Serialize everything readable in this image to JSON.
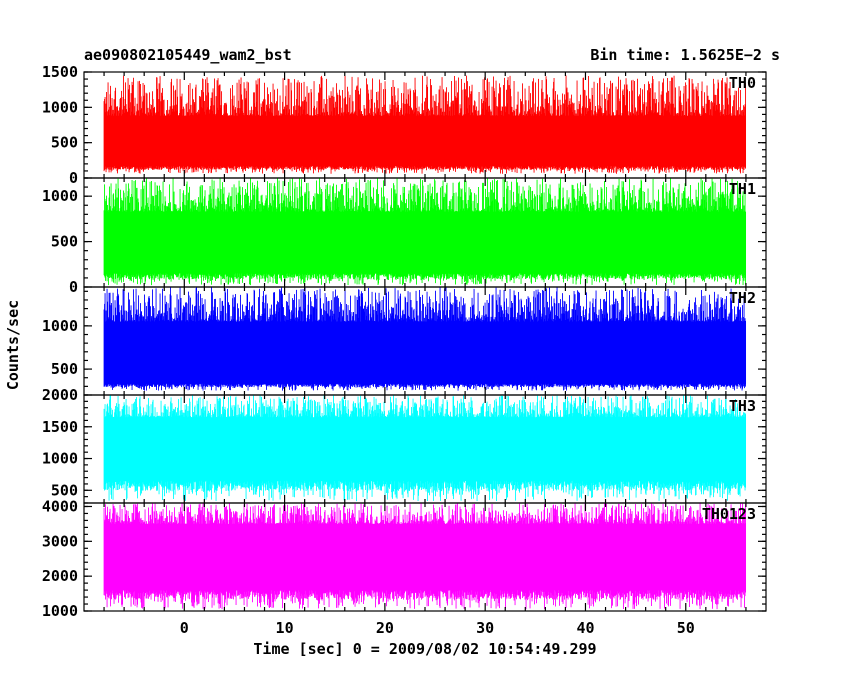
{
  "header": {
    "file_label": "ae090802105449_wam2_bst",
    "bin_time_label": "Bin time: 1.5625E−2 s"
  },
  "axes": {
    "ylabel": "Counts/sec",
    "xlabel": "Time [sec] 0 = 2009/08/02 10:54:49.299"
  },
  "chart_data": {
    "type": "line",
    "title": "ae090802105449_wam2_bst",
    "subtitle": "Bin time: 1.5625E−2 s",
    "xlabel": "Time [sec] 0 = 2009/08/02 10:54:49.299",
    "ylabel": "Counts/sec",
    "xlim": [
      -10,
      58
    ],
    "xticks": [
      0,
      10,
      20,
      30,
      40,
      50
    ],
    "x_range_data": [
      -8,
      56
    ],
    "bin_time": 0.015625,
    "grid": false,
    "panels": [
      {
        "name": "TH0",
        "color": "#ff0000",
        "ylim": [
          0,
          1500
        ],
        "yticks": [
          0,
          500,
          1000,
          1500
        ],
        "baseline_min": 60,
        "body_low": 170,
        "body_high": 880,
        "peak_max": 1450
      },
      {
        "name": "TH1",
        "color": "#00ff00",
        "ylim": [
          0,
          1200
        ],
        "yticks": [
          0,
          500,
          1000
        ],
        "baseline_min": 20,
        "body_low": 150,
        "body_high": 830,
        "peak_max": 1200
      },
      {
        "name": "TH2",
        "color": "#0000ff",
        "ylim": [
          200,
          1450
        ],
        "yticks": [
          500,
          1000
        ],
        "baseline_min": 250,
        "body_low": 330,
        "body_high": 1050,
        "peak_max": 1450
      },
      {
        "name": "TH3",
        "color": "#00ffff",
        "ylim": [
          300,
          2000
        ],
        "yticks": [
          500,
          1000,
          1500,
          2000
        ],
        "baseline_min": 330,
        "body_low": 650,
        "body_high": 1650,
        "peak_max": 2000
      },
      {
        "name": "TH0123",
        "color": "#ff00ff",
        "ylim": [
          1000,
          4100
        ],
        "yticks": [
          1000,
          2000,
          3000,
          4000
        ],
        "baseline_min": 1050,
        "body_low": 1600,
        "body_high": 3500,
        "peak_max": 4100
      }
    ]
  }
}
